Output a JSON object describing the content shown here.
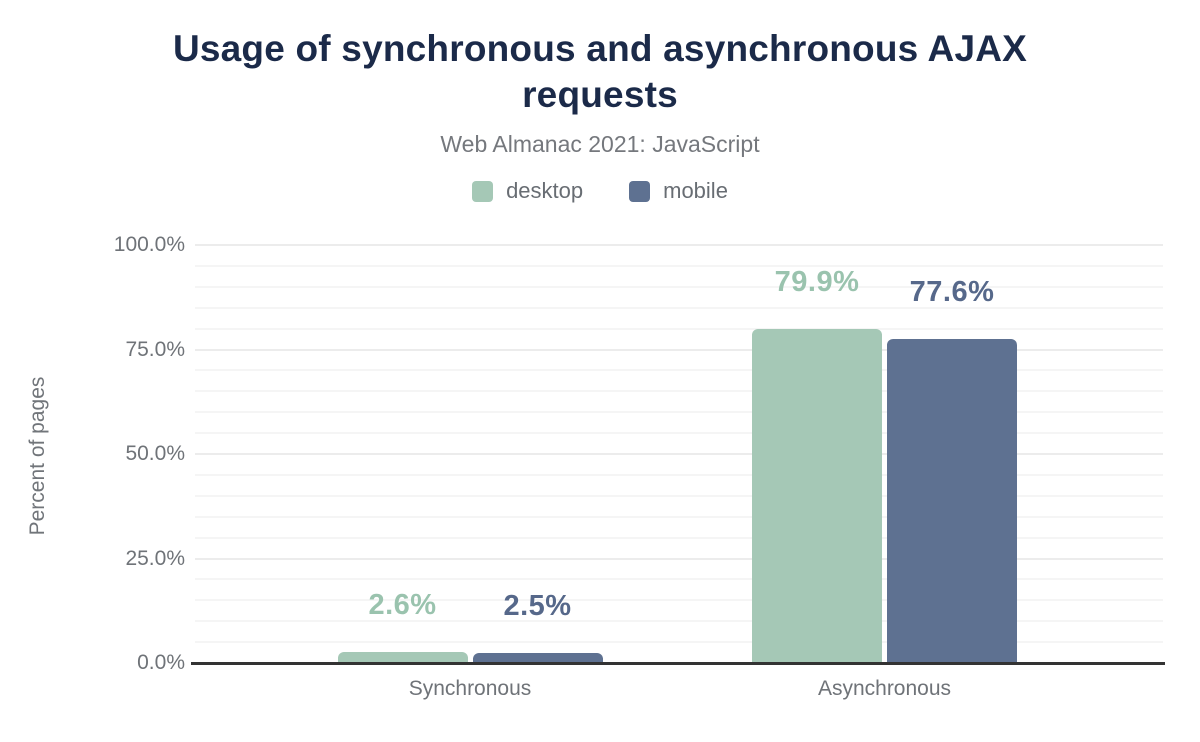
{
  "title": "Usage of synchronous and asynchronous AJAX requests",
  "subtitle": "Web Almanac 2021: JavaScript",
  "legend": {
    "items": [
      {
        "label": "desktop",
        "color": "#a5c8b6"
      },
      {
        "label": "mobile",
        "color": "#5e7191"
      }
    ]
  },
  "chart_data": {
    "type": "bar",
    "title": "Usage of synchronous and asynchronous AJAX requests",
    "subtitle": "Web Almanac 2021: JavaScript",
    "categories": [
      "Synchronous",
      "Asynchronous"
    ],
    "series": [
      {
        "name": "desktop",
        "values": [
          2.6,
          79.9
        ],
        "color": "#a5c8b6",
        "label_color": "#9ac3ae"
      },
      {
        "name": "mobile",
        "values": [
          2.5,
          77.6
        ],
        "color": "#5e7191",
        "label_color": "#56688a"
      }
    ],
    "value_labels": {
      "desktop": [
        "2.6%",
        "79.9%"
      ],
      "mobile": [
        "2.5%",
        "77.6%"
      ]
    },
    "xlabel": "",
    "ylabel": "Percent of pages",
    "ylim": [
      0,
      100
    ],
    "yticks": [
      "0.0%",
      "25.0%",
      "50.0%",
      "75.0%",
      "100.0%"
    ],
    "grid": "horizontal, minor every 5%, major every 25%",
    "legend_position": "top center",
    "colors": {
      "title": "#1b2a49",
      "subtitle_text": "#75787d",
      "axis_text": "#6f7378",
      "axis_line": "#333333",
      "grid_minor": "#f5f5f5",
      "grid_major": "#ececec"
    }
  }
}
